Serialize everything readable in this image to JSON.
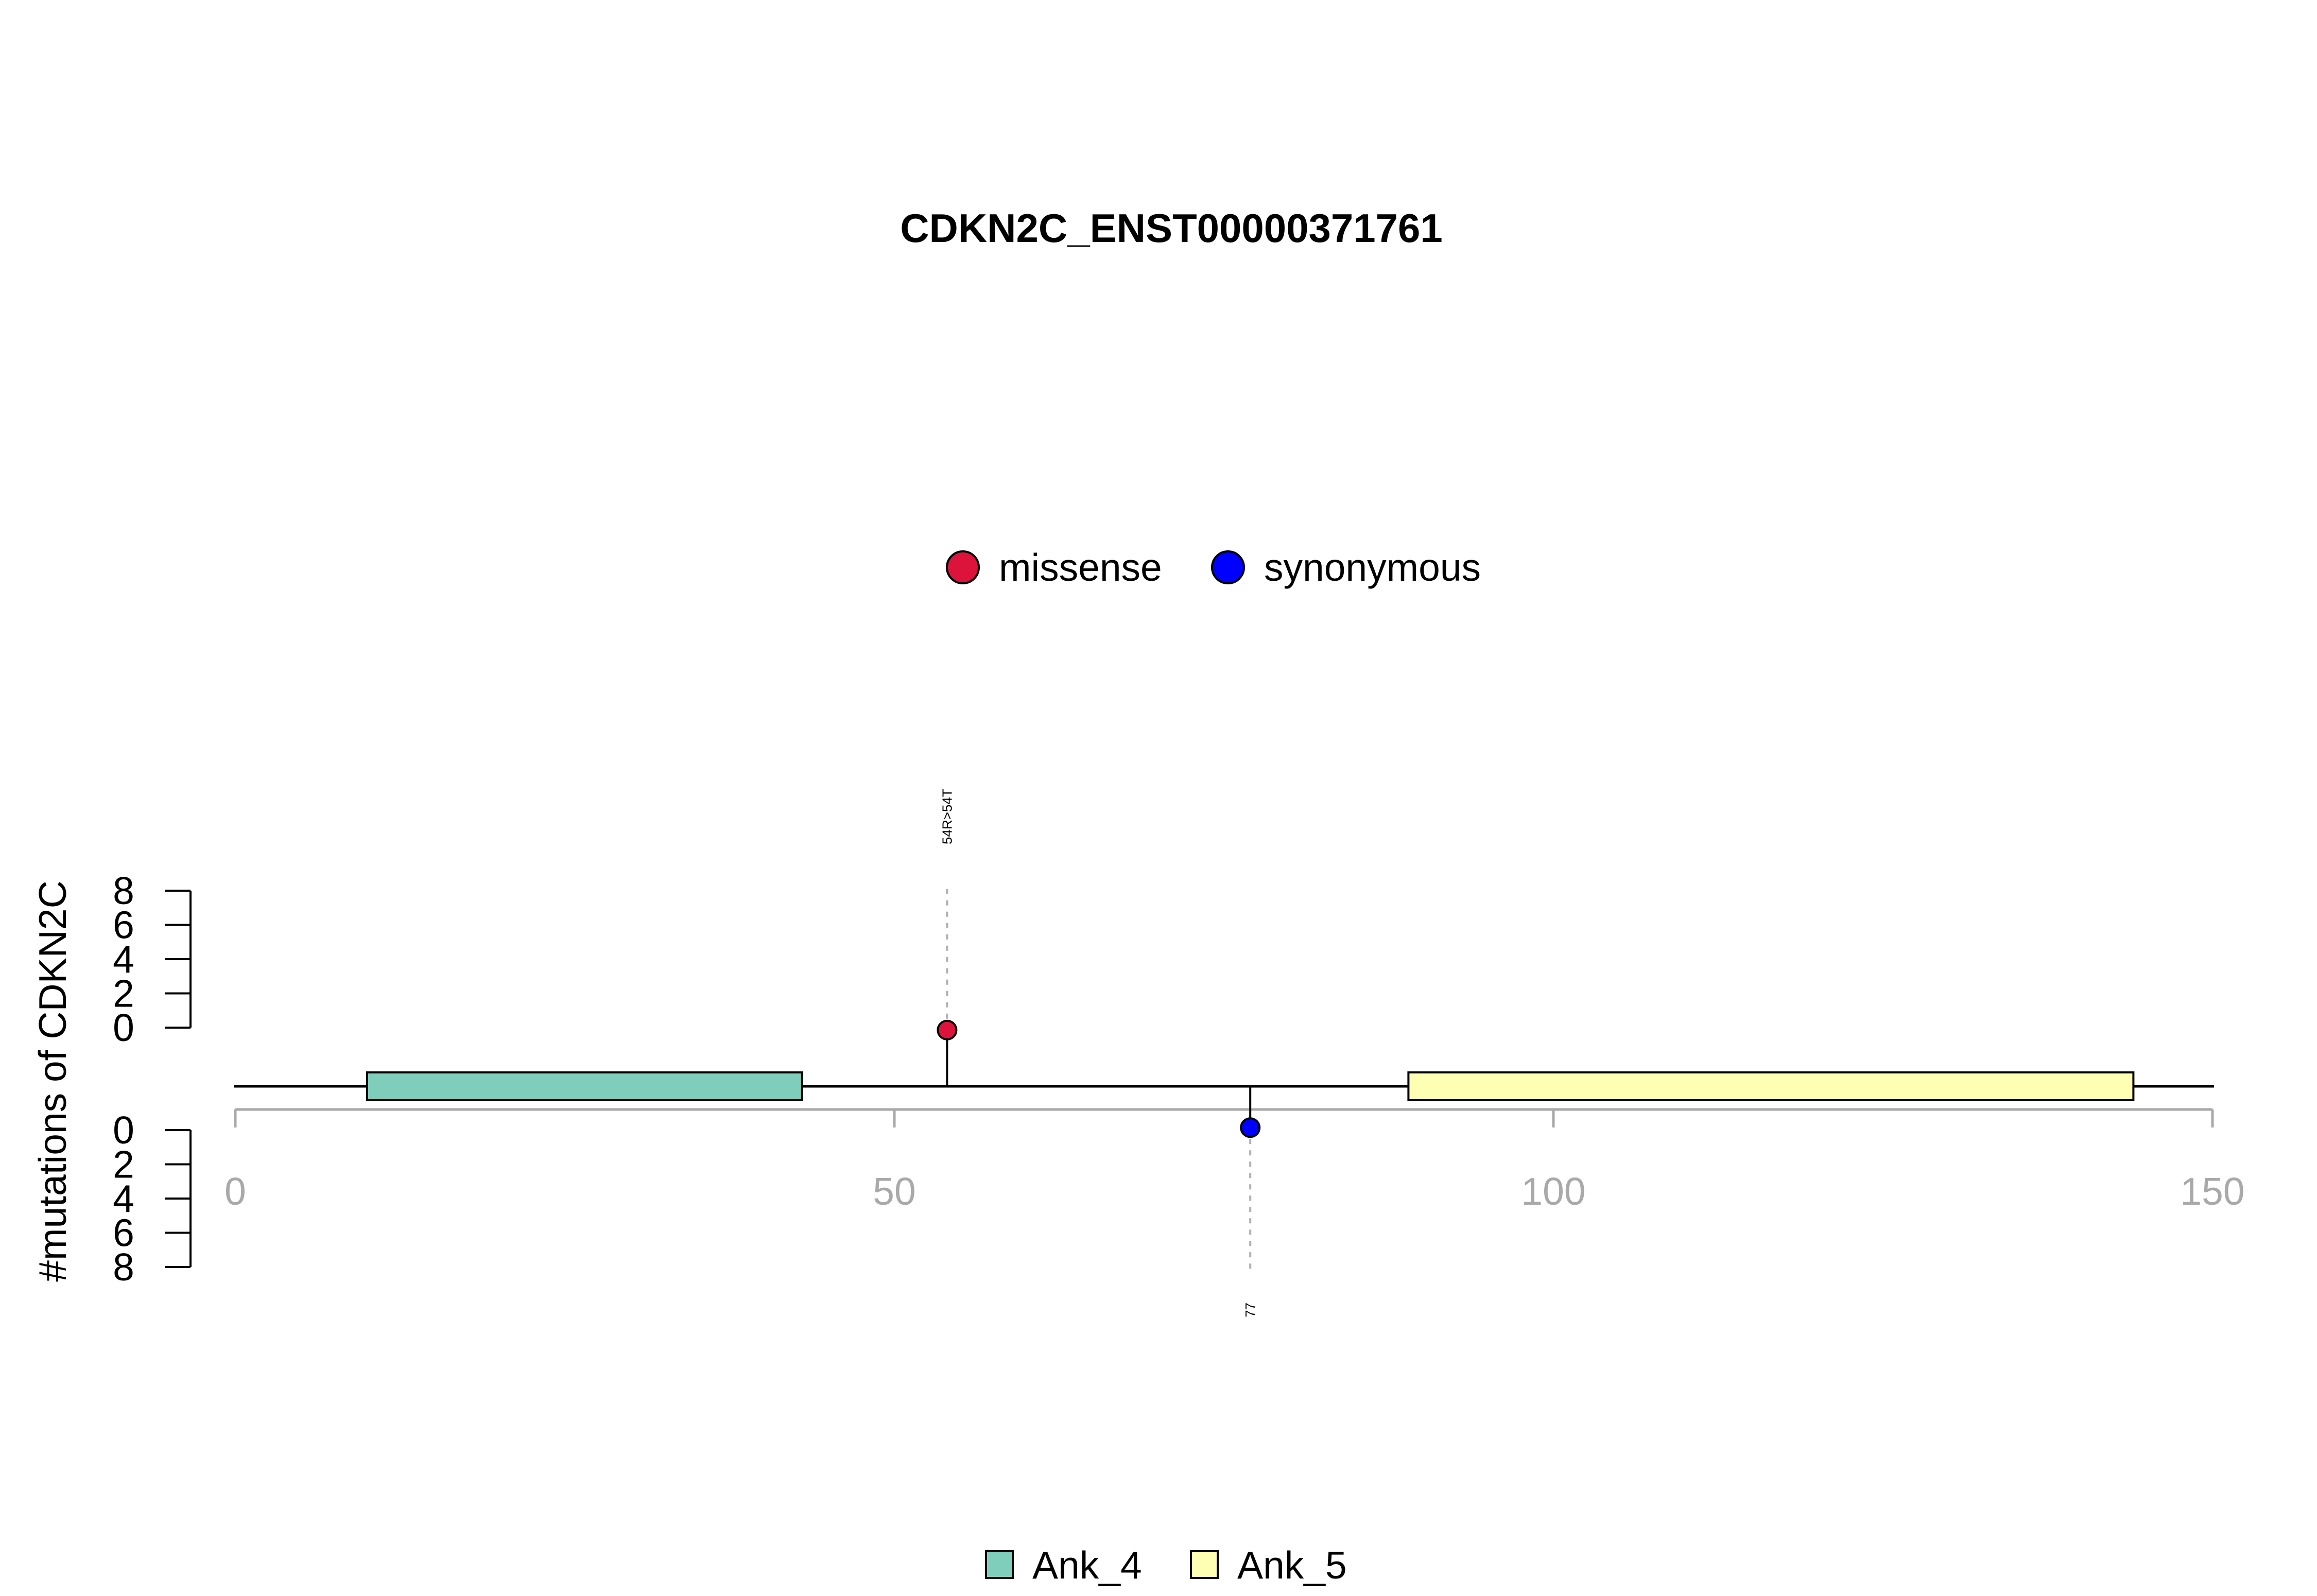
{
  "chart_data": {
    "type": "lollipop",
    "title": "CDKN2C_ENST00000371761",
    "ylabel": "#mutations of CDKN2C",
    "xlim": [
      0,
      150
    ],
    "x_ticks": [
      "0",
      "50",
      "100",
      "150"
    ],
    "y_ticks": [
      "0",
      "2",
      "4",
      "6",
      "8"
    ],
    "ylim": [
      0,
      8
    ],
    "legend_mutations": [
      {
        "label": "missense",
        "color": "#dc143c"
      },
      {
        "label": "synonymous",
        "color": "#0000ff"
      }
    ],
    "legend_domains": [
      {
        "label": "Ank_4",
        "color": "#7fcdbb"
      },
      {
        "label": "Ank_5",
        "color": "#ffffb3"
      }
    ],
    "domains": [
      {
        "name": "Ank_4",
        "start": 10,
        "end": 43,
        "color": "#7fcdbb"
      },
      {
        "name": "Ank_5",
        "start": 89,
        "end": 144,
        "color": "#ffffb3"
      }
    ],
    "mutations": [
      {
        "position": 54,
        "count": 1,
        "type": "missense",
        "side": "top",
        "label": "54R>54T",
        "color": "#dc143c"
      },
      {
        "position": 77,
        "count": 1,
        "type": "synonymous",
        "side": "bottom",
        "label": "77",
        "color": "#0000ff"
      }
    ]
  }
}
